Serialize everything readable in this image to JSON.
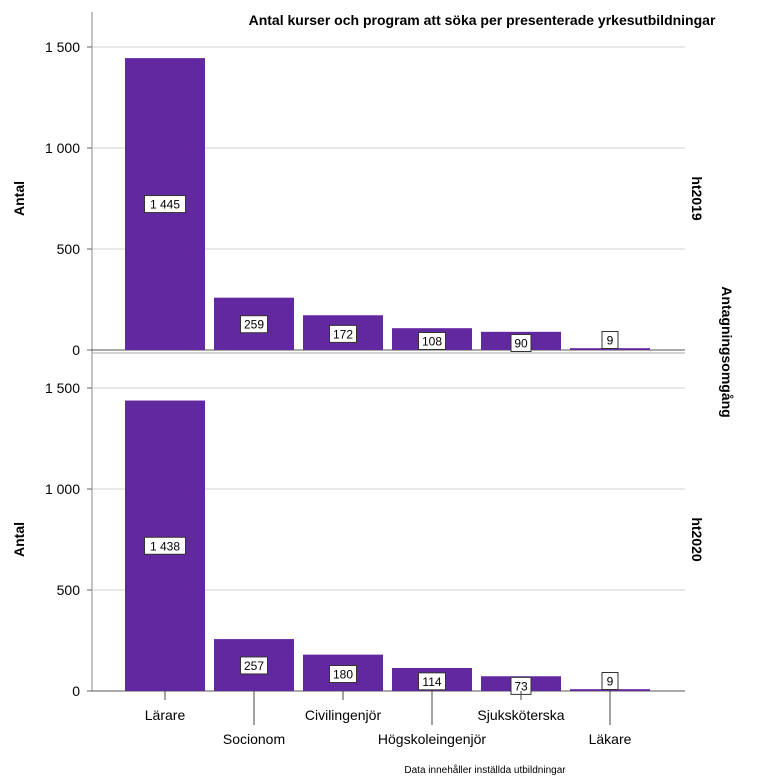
{
  "chart_data": {
    "type": "bar",
    "title": "Antal kurser och program att söka per presenterade yrkesutbildningar",
    "ylabel": "Antal",
    "facet_label": "Antagningsomgång",
    "footnote": "Data innehåller inställda utbildningar",
    "categories": [
      "Lärare",
      "Socionom",
      "Civilingenjör",
      "Högskoleingenjör",
      "Sjuksköterska",
      "Läkare"
    ],
    "ylim": [
      0,
      1500
    ],
    "yticks": [
      0,
      500,
      1000,
      1500
    ],
    "ytick_labels": [
      "0",
      "500",
      "1 000",
      "1 500"
    ],
    "grid": true,
    "bar_color": "#6228A0",
    "panels": [
      {
        "name": "ht2019",
        "values": [
          1445,
          259,
          172,
          108,
          90,
          9
        ],
        "value_labels": [
          "1 445",
          "259",
          "172",
          "108",
          "90",
          "9"
        ]
      },
      {
        "name": "ht2020",
        "values": [
          1438,
          257,
          180,
          114,
          73,
          9
        ],
        "value_labels": [
          "1 438",
          "257",
          "180",
          "114",
          "73",
          "9"
        ]
      }
    ]
  }
}
